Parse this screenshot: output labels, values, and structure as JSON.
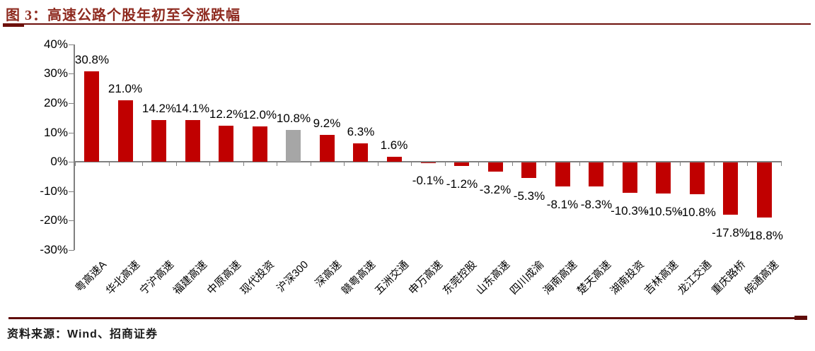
{
  "header": {
    "title": "图 3：高速公路个股年初至今涨跌幅"
  },
  "footer": {
    "source": "资料来源：Wind、招商证券"
  },
  "colors": {
    "bar_red": "#c00000",
    "benchmark_gray": "#a6a6a6",
    "axis_gray": "#808080",
    "rule_dark_red": "#6d100c",
    "title_red": "#8e2a1f",
    "label_black": "#000000"
  },
  "chart_data": {
    "type": "bar",
    "title": "高速公路个股年初至今涨跌幅",
    "xlabel": "",
    "ylabel": "",
    "ylim": [
      -30,
      40
    ],
    "yticks": [
      40,
      30,
      20,
      10,
      0,
      -10,
      -20,
      -30
    ],
    "ytick_labels": [
      "40%",
      "30%",
      "20%",
      "10%",
      "0%",
      "-10%",
      "-20%",
      "-30%"
    ],
    "grid": false,
    "legend_position": "none",
    "categories": [
      "粤高速A",
      "华北高速",
      "宁沪高速",
      "福建高速",
      "中原高速",
      "现代投资",
      "沪深300",
      "深高速",
      "赣粤高速",
      "五洲交通",
      "申万高速",
      "东莞控股",
      "山东高速",
      "四川成渝",
      "海南高速",
      "楚天高速",
      "湖南投资",
      "吉林高速",
      "龙江交通",
      "重庆路桥",
      "皖通高速"
    ],
    "values": [
      30.8,
      21.0,
      14.2,
      14.1,
      12.2,
      12.0,
      10.8,
      9.2,
      6.3,
      1.6,
      -0.1,
      -1.2,
      -3.2,
      -5.3,
      -8.1,
      -8.3,
      -10.3,
      -10.5,
      -10.8,
      -17.8,
      -18.8
    ],
    "value_labels": [
      "30.8%",
      "21.0%",
      "14.2%",
      "14.1%",
      "12.2%",
      "12.0%",
      "10.8%",
      "9.2%",
      "6.3%",
      "1.6%",
      "-0.1%",
      "-1.2%",
      "-3.2%",
      "-5.3%",
      "-8.1%",
      "-8.3%",
      "-10.3%",
      "-10.5%",
      "-10.8%",
      "-17.8%",
      "-18.8%"
    ],
    "benchmark_categories": [
      "沪深300"
    ]
  }
}
